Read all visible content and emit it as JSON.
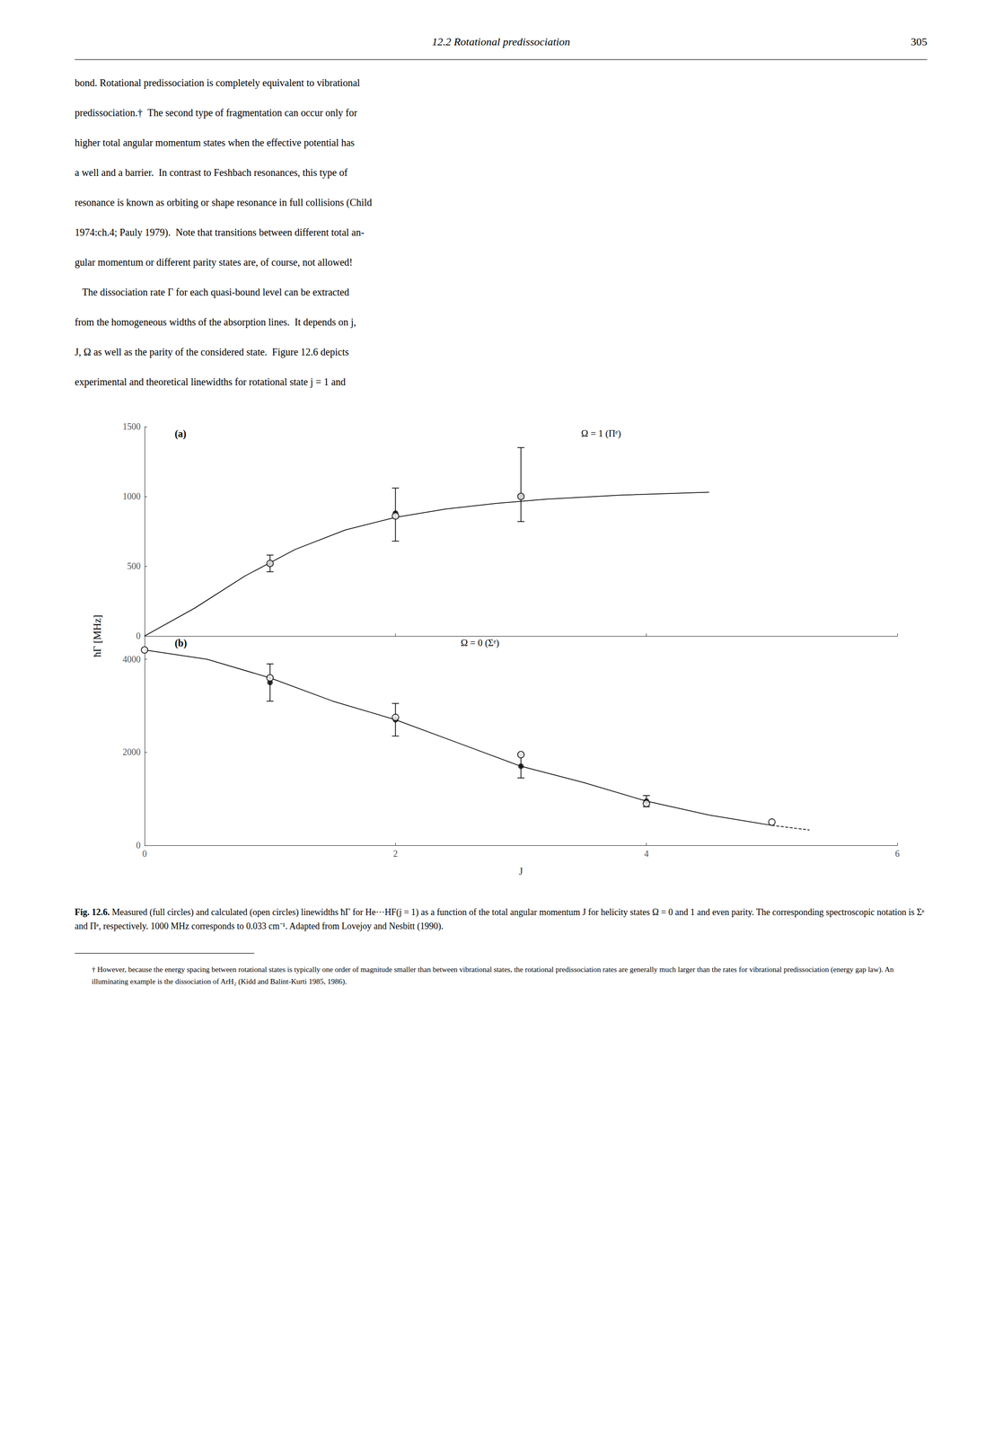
{
  "header": {
    "title": "12.2  Rotational predissociation",
    "page_number": "305"
  },
  "body_lines": [
    "bond. Rotational predissociation is completely equivalent to vibrational",
    "predissociation.†  The second type of fragmentation can occur only for",
    "higher total angular momentum states when the effective potential has",
    "a well and a barrier.  In contrast to Feshbach resonances, this type of",
    "resonance is known as orbiting or shape resonance in full collisions (Child",
    "1974:ch.4; Pauly 1979).  Note that transitions between different total an-",
    "gular momentum or different parity states are, of course, not allowed!",
    "   The dissociation rate Γ for each quasi-bound level can be extracted",
    "from the homogeneous widths of the absorption lines.  It depends on j,",
    "J, Ω as well as the parity of the considered state.  Figure 12.6 depicts",
    "experimental and theoretical linewidths for rotational state j = 1 and"
  ],
  "chart_data": [
    {
      "type": "line",
      "annotations": [
        "(a)",
        "Ω = 1 (Πᵉ)"
      ],
      "ylabel": "ħΓ [MHz]",
      "xlim": [
        0,
        6
      ],
      "xticks": [
        0,
        2,
        4,
        6
      ],
      "ylim": [
        0,
        1500
      ],
      "yticks": [
        0,
        500,
        1000,
        1500
      ],
      "grid": false,
      "tick_labels": "y",
      "series": [
        {
          "type": "line",
          "line_style": "solid",
          "color": "#000000",
          "x": [
            0.0,
            0.4,
            0.8,
            1.2,
            1.6,
            2.0,
            2.4,
            2.8,
            3.2,
            3.8,
            4.5
          ],
          "values": [
            0,
            200,
            430,
            620,
            760,
            850,
            910,
            950,
            980,
            1010,
            1030
          ]
        },
        {
          "type": "scatter",
          "marker": "filled_circle",
          "color": "#000000",
          "x": [
            1,
            2,
            3
          ],
          "values": [
            520,
            880,
            1000
          ],
          "yerr_lo": [
            60,
            200,
            180
          ],
          "yerr_hi": [
            60,
            180,
            350
          ]
        },
        {
          "type": "scatter",
          "marker": "open_circle",
          "color": "#000000",
          "x": [
            1,
            2,
            3
          ],
          "values": [
            520,
            860,
            1000
          ]
        }
      ]
    },
    {
      "type": "line",
      "annotations": [
        "(b)",
        "Ω = 0 (Σᵉ)"
      ],
      "xlabel": "J",
      "xlim": [
        0,
        6
      ],
      "xticks": [
        0,
        2,
        4,
        6
      ],
      "ylim": [
        0,
        4500
      ],
      "yticks": [
        0,
        2000,
        4000
      ],
      "grid": false,
      "series": [
        {
          "type": "line",
          "line_style": "solid",
          "color": "#000000",
          "x": [
            0.0,
            0.5,
            1.0,
            1.5,
            2.0,
            2.5,
            3.0,
            3.5,
            4.0,
            4.5,
            5.0
          ],
          "values": [
            4200,
            4000,
            3600,
            3100,
            2700,
            2200,
            1700,
            1350,
            950,
            650,
            430
          ]
        },
        {
          "type": "line",
          "line_style": "dashed",
          "color": "#000000",
          "x": [
            5.0,
            5.3
          ],
          "values": [
            430,
            330
          ]
        },
        {
          "type": "scatter",
          "marker": "filled_circle",
          "color": "#000000",
          "x": [
            1,
            2,
            3,
            4
          ],
          "values": [
            3500,
            2700,
            1700,
            950
          ],
          "yerr_lo": [
            400,
            350,
            250,
            120
          ],
          "yerr_hi": [
            400,
            350,
            250,
            120
          ]
        },
        {
          "type": "scatter",
          "marker": "open_circle",
          "color": "#000000",
          "x": [
            0,
            1,
            2,
            3,
            4,
            5
          ],
          "values": [
            4200,
            3600,
            2750,
            1950,
            900,
            500
          ]
        }
      ]
    }
  ],
  "caption": {
    "bold": "Fig. 12.6.",
    "text": "  Measured (full circles) and calculated (open circles) linewidths ħΓ for He···HF(j = 1) as a function of the total angular momentum J for helicity states Ω = 0 and 1 and even parity.  The corresponding spectroscopic notation is Σᵉ and Πᵉ, respectively.  1000 MHz corresponds to 0.033 cm⁻¹.  Adapted from Lovejoy and Nesbitt (1990)."
  },
  "footnote": "† However, because the energy spacing between rotational states is typically one order of magnitude smaller than between vibrational states, the rotational predissociation rates are generally much larger than the rates for vibrational predissociation (energy gap law).  An illuminating example is the dissociation of  ArH₂ (Kidd and Balint-Kurti 1985, 1986)."
}
